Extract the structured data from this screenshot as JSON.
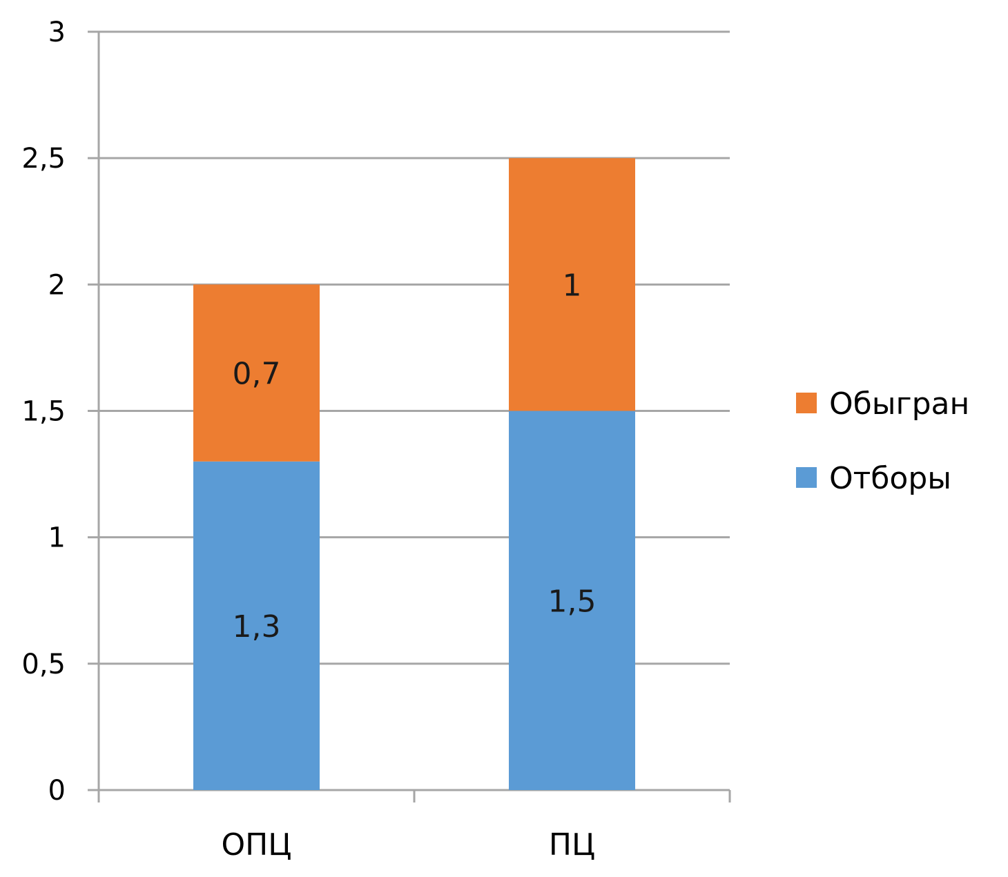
{
  "chart_data": {
    "type": "bar",
    "stacked": true,
    "categories": [
      "ОПЦ",
      "ПЦ"
    ],
    "series": [
      {
        "name": "Отборы",
        "values": [
          1.3,
          1.5
        ],
        "labels": [
          "1,3",
          "1,5"
        ],
        "color": "#5b9bd5"
      },
      {
        "name": "Обыгран",
        "values": [
          0.7,
          1
        ],
        "labels": [
          "0,7",
          "1"
        ],
        "color": "#ed7d31"
      }
    ],
    "ylim": [
      0,
      3
    ],
    "yticks": [
      0,
      0.5,
      1,
      1.5,
      2,
      2.5,
      3
    ],
    "ytick_labels": [
      "0",
      "0,5",
      "1",
      "1,5",
      "2",
      "2,5",
      "3"
    ],
    "grid": true,
    "grid_color": "#a6a6a6",
    "legend": {
      "position": "right",
      "entries": [
        "Обыгран",
        "Отборы"
      ]
    },
    "title": "",
    "xlabel": "",
    "ylabel": ""
  }
}
